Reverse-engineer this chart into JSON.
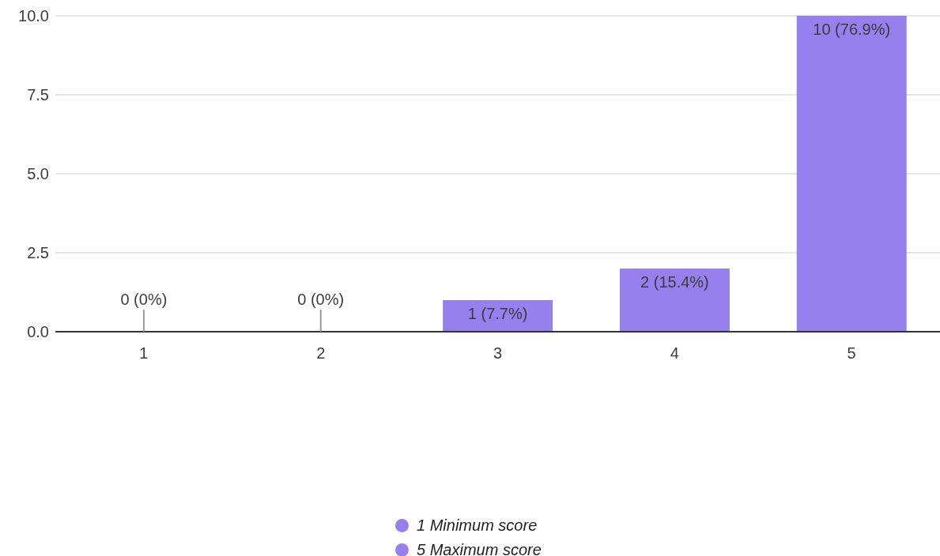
{
  "chart_data": {
    "type": "bar",
    "categories": [
      "1",
      "2",
      "3",
      "4",
      "5"
    ],
    "values": [
      0,
      0,
      1,
      2,
      10
    ],
    "color": "#9580ed",
    "value_labels": [
      "0 (0%)",
      "0 (0%)",
      "1 (7.7%)",
      "2 (15.4%)",
      "10 (76.9%)"
    ],
    "ylim": [
      0,
      10
    ],
    "yticks": [
      {
        "value": 0,
        "label": "0.0"
      },
      {
        "value": 2.5,
        "label": "2.5"
      },
      {
        "value": 5,
        "label": "5.0"
      },
      {
        "value": 7.5,
        "label": "7.5"
      },
      {
        "value": 10,
        "label": "10.0"
      }
    ],
    "grid": "y",
    "annotations": [
      "1 Minimum score",
      "5 Maximum score"
    ]
  }
}
